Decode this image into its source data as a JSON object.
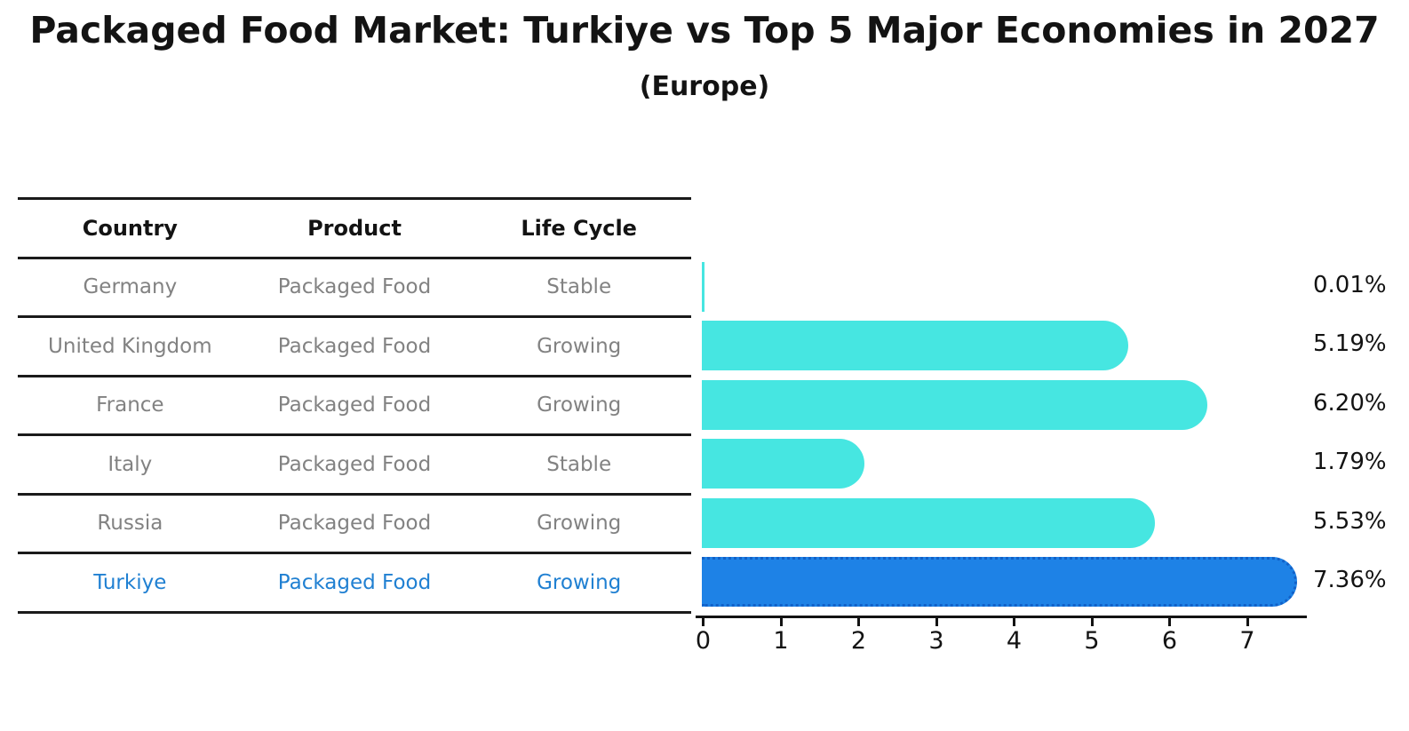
{
  "title": "Packaged Food Market: Turkiye vs Top 5 Major Economies in 2027",
  "subtitle": "(Europe)",
  "table": {
    "columns": [
      "Country",
      "Product",
      "Life Cycle"
    ],
    "rows": [
      {
        "country": "Germany",
        "product": "Packaged Food",
        "life_cycle": "Stable",
        "highlight": false
      },
      {
        "country": "United Kingdom",
        "product": "Packaged Food",
        "life_cycle": "Growing",
        "highlight": false
      },
      {
        "country": "France",
        "product": "Packaged Food",
        "life_cycle": "Growing",
        "highlight": false
      },
      {
        "country": "Italy",
        "product": "Packaged Food",
        "life_cycle": "Stable",
        "highlight": false
      },
      {
        "country": "Russia",
        "product": "Packaged Food",
        "life_cycle": "Growing",
        "highlight": false
      },
      {
        "country": "Turkiye",
        "product": "Packaged Food",
        "life_cycle": "Growing",
        "highlight": true
      }
    ]
  },
  "chart_data": {
    "type": "bar",
    "orientation": "horizontal",
    "title": "Packaged Food Market: Turkiye vs Top 5 Major Economies in 2027",
    "subtitle": "(Europe)",
    "categories": [
      "Germany",
      "United Kingdom",
      "France",
      "Italy",
      "Russia",
      "Turkiye"
    ],
    "values": [
      0.01,
      5.19,
      6.2,
      1.79,
      5.53,
      7.36
    ],
    "value_labels": [
      "0.01%",
      "5.19%",
      "6.20%",
      "1.79%",
      "5.53%",
      "7.36%"
    ],
    "x_ticks": [
      0,
      1,
      2,
      3,
      4,
      5,
      6,
      7
    ],
    "xlim": [
      0,
      7.6
    ],
    "grid": false,
    "legend": "none",
    "bar_color": "#46e6e1",
    "highlight_index": 5,
    "highlight_color": "#1e82e6",
    "highlight_border_color": "#1161c8",
    "text_color": "#131313",
    "muted_text_color": "#828282",
    "highlight_text_color": "#2080d2"
  }
}
